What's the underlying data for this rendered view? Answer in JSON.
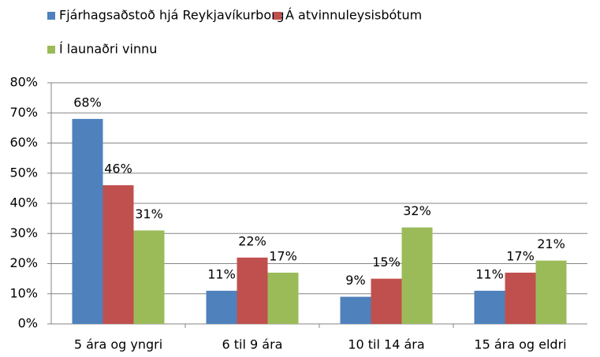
{
  "chart_data": {
    "type": "bar",
    "categories": [
      "5 ára og yngri",
      "6 til 9 ára",
      "10 til 14 ára",
      "15 ára og eldri"
    ],
    "series": [
      {
        "name": "Fjárhagsaðstoð hjá Reykjavíkurborg",
        "color": "#4f81bd",
        "values": [
          68,
          11,
          9,
          11
        ],
        "value_labels": [
          "68%",
          "11%",
          "9%",
          "11%"
        ]
      },
      {
        "name": "Á atvinnuleysisbótum",
        "color": "#c0504d",
        "values": [
          46,
          22,
          15,
          17
        ],
        "value_labels": [
          "46%",
          "22%",
          "15%",
          "17%"
        ]
      },
      {
        "name": "Í launaðri vinnu",
        "color": "#9bbb59",
        "values": [
          31,
          17,
          32,
          21
        ],
        "value_labels": [
          "31%",
          "17%",
          "32%",
          "21%"
        ]
      }
    ],
    "ylim": [
      0,
      80
    ],
    "yticks": [
      {
        "value": 0,
        "label": "0%"
      },
      {
        "value": 10,
        "label": "10%"
      },
      {
        "value": 20,
        "label": "20%"
      },
      {
        "value": 30,
        "label": "30%"
      },
      {
        "value": 40,
        "label": "40%"
      },
      {
        "value": 50,
        "label": "50%"
      },
      {
        "value": 60,
        "label": "60%"
      },
      {
        "value": 70,
        "label": "70%"
      },
      {
        "value": 80,
        "label": "80%"
      }
    ],
    "grid": true,
    "legend": "top"
  }
}
